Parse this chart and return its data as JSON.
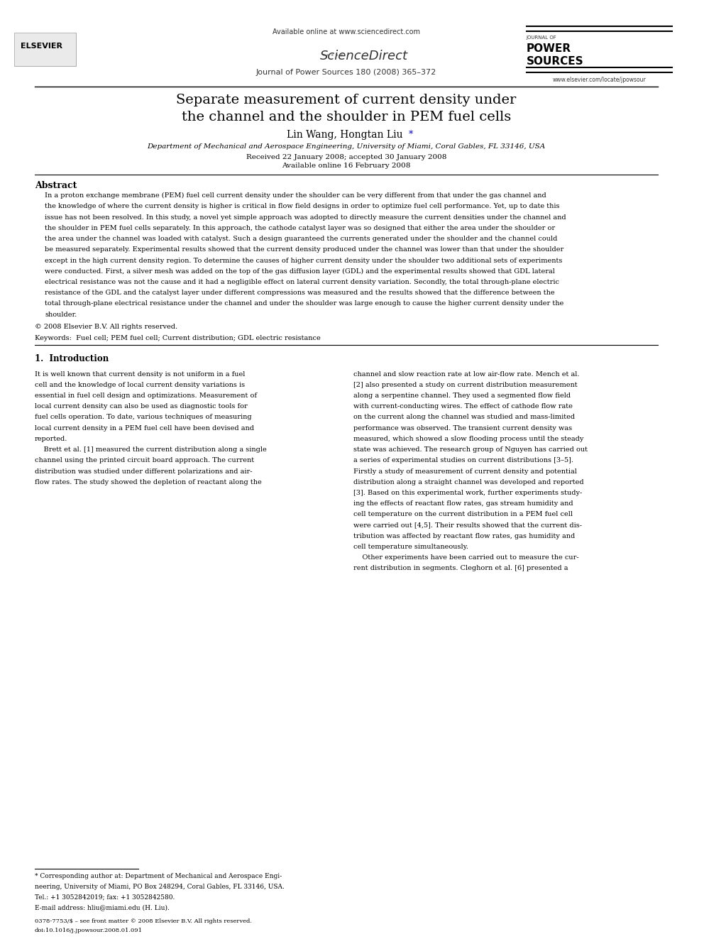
{
  "bg_color": "#ffffff",
  "header": {
    "available_online": "Available online at www.sciencedirect.com",
    "sciencedirect": "ScienceDirect",
    "journal_name": "Journal of Power Sources 180 (2008) 365–372",
    "journal_logo": "JOURNAL OF\nPOWER\nSOURCES",
    "website": "www.elsevier.com/locate/jpowsour",
    "elsevier": "ELSEVIER"
  },
  "title": "Separate measurement of current density under\nthe channel and the shoulder in PEM fuel cells",
  "authors": "Lin Wang, Hongtan Liu *",
  "affiliation": "Department of Mechanical and Aerospace Engineering, University of Miami, Coral Gables, FL 33146, USA",
  "received": "Received 22 January 2008; accepted 30 January 2008",
  "available": "Available online 16 February 2008",
  "abstract_title": "Abstract",
  "abstract_text": "In a proton exchange membrane (PEM) fuel cell current density under the shoulder can be very different from that under the gas channel and\nthe knowledge of where the current density is higher is critical in flow field designs in order to optimize fuel cell performance. Yet, up to date this\nissue has not been resolved. In this study, a novel yet simple approach was adopted to directly measure the current densities under the channel and\nthe shoulder in PEM fuel cells separately. In this approach, the cathode catalyst layer was so designed that either the area under the shoulder or\nthe area under the channel was loaded with catalyst. Such a design guaranteed the currents generated under the shoulder and the channel could\nbe measured separately. Experimental results showed that the current density produced under the channel was lower than that under the shoulder\nexcept in the high current density region. To determine the causes of higher current density under the shoulder two additional sets of experiments\nwere conducted. First, a silver mesh was added on the top of the gas diffusion layer (GDL) and the experimental results showed that GDL lateral\nelectrical resistance was not the cause and it had a negligible effect on lateral current density variation. Secondly, the total through-plane electric\nresistance of the GDL and the catalyst layer under different compressions was measured and the results showed that the difference between the\ntotal through-plane electrical resistance under the channel and under the shoulder was large enough to cause the higher current density under the\nshoulder.",
  "copyright": "© 2008 Elsevier B.V. All rights reserved.",
  "keywords": "Keywords:  Fuel cell; PEM fuel cell; Current distribution; GDL electric resistance",
  "section1_title": "1.  Introduction",
  "section1_col1": "It is well known that current density is not uniform in a fuel\ncell and the knowledge of local current density variations is\nessential in fuel cell design and optimizations. Measurement of\nlocal current density can also be used as diagnostic tools for\nfuel cells operation. To date, various techniques of measuring\nlocal current density in a PEM fuel cell have been devised and\nreported.\n    Brett et al. [1] measured the current distribution along a single\nchannel using the printed circuit board approach. The current\ndistribution was studied under different polarizations and air-\nflow rates. The study showed the depletion of reactant along the",
  "section1_col2": "channel and slow reaction rate at low air-flow rate. Mench et al.\n[2] also presented a study on current distribution measurement\nalong a serpentine channel. They used a segmented flow field\nwith current-conducting wires. The effect of cathode flow rate\non the current along the channel was studied and mass-limited\nperformance was observed. The transient current density was\nmeasured, which showed a slow flooding process until the steady\nstate was achieved. The research group of Nguyen has carried out\na series of experimental studies on current distributions [3–5].\nFirstly a study of measurement of current density and potential\ndistribution along a straight channel was developed and reported\n[3]. Based on this experimental work, further experiments study-\ning the effects of reactant flow rates, gas stream humidity and\ncell temperature on the current distribution in a PEM fuel cell\nwere carried out [4,5]. Their results showed that the current dis-\ntribution was affected by reactant flow rates, gas humidity and\ncell temperature simultaneously.\n    Other experiments have been carried out to measure the cur-\nrent distribution in segments. Cleghorn et al. [6] presented a",
  "footnote_star": "* Corresponding author at: Department of Mechanical and Aerospace Engi-\nneering, University of Miami, PO Box 248294, Coral Gables, FL 33146, USA.\nTel.: +1 3052842019; fax: +1 3052842580.\nE-mail address: hliu@miami.edu (H. Liu).",
  "footer_left": "0378-7753/$ – see front matter © 2008 Elsevier B.V. All rights reserved.\ndoi:10.1016/j.jpowsour.2008.01.091"
}
